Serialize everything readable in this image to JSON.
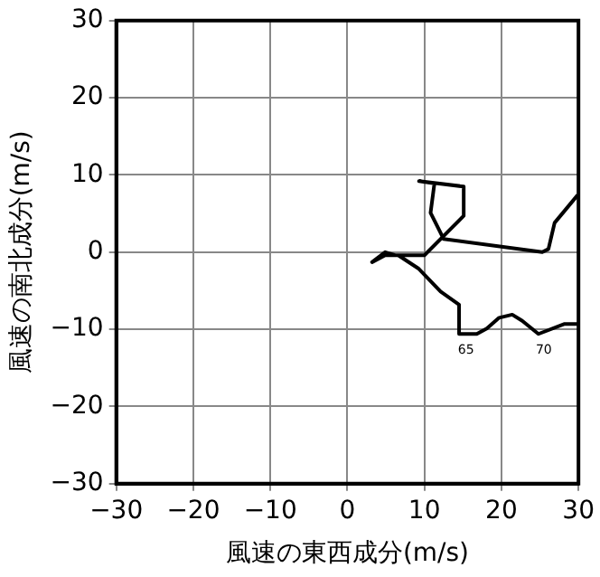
{
  "chart_data": {
    "type": "line",
    "xlabel": "風速の東西成分(m/s)",
    "ylabel": "風速の南北成分(m/s)",
    "xlim": [
      -30,
      30
    ],
    "xticks": [
      -30,
      -20,
      -10,
      0,
      10,
      20,
      30
    ],
    "ylim": [
      -30,
      30
    ],
    "yticks": [
      -30,
      -20,
      -10,
      0,
      10,
      20,
      30
    ],
    "grid": true,
    "legend": false,
    "marker": "none",
    "series": [
      {
        "color": "#000000",
        "x": [
          29.9,
          28.2,
          24.8,
          22.7,
          21.4,
          19.7,
          18.1,
          16.8,
          14.7,
          14.5,
          12.1,
          9.2,
          6.6,
          4.9,
          3.2,
          4.9,
          6.2,
          10,
          15.1,
          15.1,
          9.3,
          11.3,
          10.8,
          12.5,
          25.3,
          26.1,
          26.9,
          29.9
        ],
        "values": [
          -9.3,
          -9.3,
          -10.6,
          -8.9,
          -8.1,
          -8.5,
          -9.9,
          -10.6,
          -10.6,
          -6.8,
          -5.1,
          -2.1,
          -0.4,
          -0.4,
          -1.3,
          0,
          -0.4,
          -0.4,
          4.7,
          8.5,
          9.2,
          8.9,
          5.1,
          1.7,
          0,
          0.4,
          3.8,
          7.4
        ]
      }
    ],
    "annotations": [
      {
        "text": "65",
        "x": 14.7,
        "y": -10.6
      },
      {
        "text": "70",
        "x": 24.8,
        "y": -10.6
      }
    ]
  }
}
